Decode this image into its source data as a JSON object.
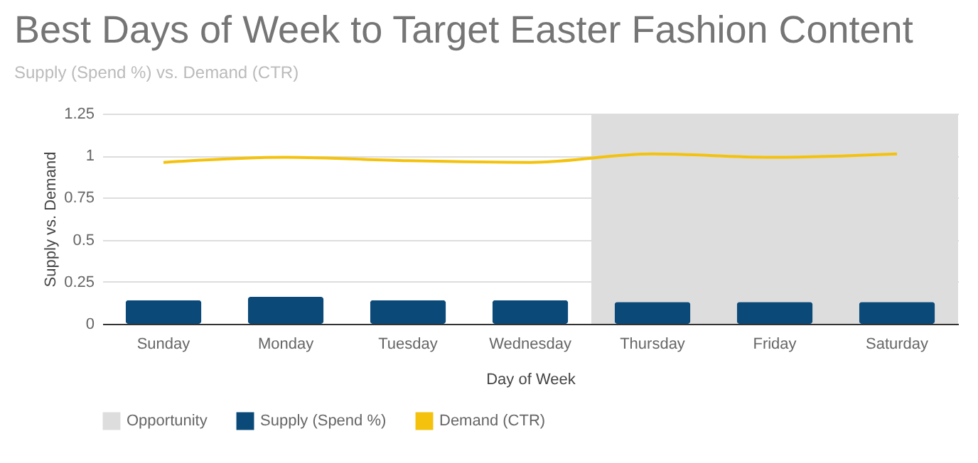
{
  "chart_data": {
    "type": "bar",
    "title": "Best Days of Week to Target Easter Fashion Content",
    "subtitle": "Supply (Spend %) vs. Demand (CTR)",
    "xlabel": "Day of Week",
    "ylabel": "Supply vs. Demand",
    "categories": [
      "Sunday",
      "Monday",
      "Tuesday",
      "Wednesday",
      "Thursday",
      "Friday",
      "Saturday"
    ],
    "series": [
      {
        "name": "Opportunity",
        "type": "bar",
        "color": "#dddddd",
        "values": [
          null,
          null,
          null,
          null,
          1.25,
          1.25,
          1.25
        ]
      },
      {
        "name": "Supply (Spend %)",
        "color": "#0b4a78",
        "values": [
          0.14,
          0.16,
          0.14,
          0.14,
          0.13,
          0.13,
          0.13
        ]
      },
      {
        "name": "Demand (CTR)",
        "type": "line",
        "color": "#f4c20d",
        "values": [
          0.96,
          0.99,
          0.97,
          0.96,
          1.01,
          0.99,
          1.01
        ]
      }
    ],
    "ylim": [
      0,
      1.25
    ],
    "yticks": [
      0,
      0.25,
      0.5,
      0.75,
      1,
      1.25
    ],
    "grid": "y",
    "legend": "bottom"
  }
}
